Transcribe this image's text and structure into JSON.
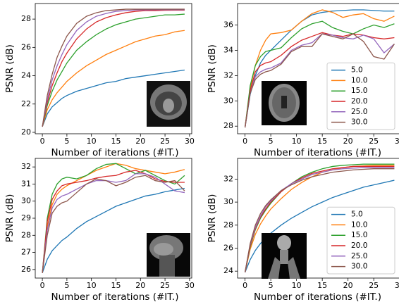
{
  "chart_data": [
    {
      "type": "line",
      "xlabel": "Number of iterations (#IT.)",
      "ylabel": "PSNR (dB)",
      "x": [
        0,
        1,
        2,
        3,
        4,
        5,
        7,
        9,
        11,
        13,
        15,
        17,
        19,
        21,
        23,
        25,
        27,
        29
      ],
      "xlim": [
        -1.45,
        30.45
      ],
      "xticks": [
        0,
        5,
        10,
        15,
        20,
        25,
        30
      ],
      "ylim": [
        19.9,
        29.1
      ],
      "yticks": [
        20,
        22,
        24,
        26,
        28
      ],
      "series": [
        {
          "color": "#1f77b4",
          "values": [
            20.4,
            21.3,
            21.8,
            22.1,
            22.4,
            22.6,
            22.9,
            23.1,
            23.3,
            23.5,
            23.6,
            23.8,
            23.9,
            24.0,
            24.1,
            24.2,
            24.3,
            24.4
          ]
        },
        {
          "color": "#ff7f0e",
          "values": [
            20.4,
            21.6,
            22.3,
            22.8,
            23.2,
            23.6,
            24.2,
            24.7,
            25.1,
            25.5,
            25.8,
            26.1,
            26.4,
            26.6,
            26.8,
            26.9,
            27.1,
            27.2
          ]
        },
        {
          "color": "#2ca02c",
          "values": [
            20.4,
            21.9,
            22.9,
            23.7,
            24.3,
            24.9,
            25.8,
            26.4,
            26.9,
            27.3,
            27.6,
            27.8,
            28.0,
            28.1,
            28.2,
            28.3,
            28.3,
            28.35
          ]
        },
        {
          "color": "#d62728",
          "values": [
            20.4,
            22.1,
            23.3,
            24.2,
            25.0,
            25.6,
            26.6,
            27.3,
            27.8,
            28.1,
            28.3,
            28.45,
            28.55,
            28.6,
            28.6,
            28.62,
            28.63,
            28.63
          ]
        },
        {
          "color": "#9467bd",
          "values": [
            20.4,
            22.3,
            23.7,
            24.7,
            25.5,
            26.2,
            27.2,
            27.8,
            28.2,
            28.4,
            28.55,
            28.6,
            28.65,
            28.65,
            28.66,
            28.66,
            28.66,
            28.66
          ]
        },
        {
          "color": "#8c564b",
          "values": [
            20.4,
            22.6,
            24.1,
            25.3,
            26.1,
            26.8,
            27.7,
            28.2,
            28.45,
            28.6,
            28.65,
            28.7,
            28.7,
            28.7,
            28.7,
            28.7,
            28.7,
            28.7
          ]
        }
      ]
    },
    {
      "type": "line",
      "xlabel": "Number of iterations (#IT.)",
      "ylabel": "PSNR (dB)",
      "legend": "lower right",
      "x": [
        0,
        1,
        2,
        3,
        4,
        5,
        7,
        9,
        11,
        13,
        15,
        17,
        19,
        21,
        23,
        25,
        27,
        29
      ],
      "xlim": [
        -1.45,
        30.45
      ],
      "xticks": [
        0,
        5,
        10,
        15,
        20,
        25,
        30
      ],
      "ylim": [
        27.4,
        37.7
      ],
      "yticks": [
        28,
        30,
        32,
        34,
        36
      ],
      "series": [
        {
          "name": "5.0",
          "color": "#1f77b4",
          "values": [
            27.9,
            30.5,
            32.0,
            33.0,
            33.6,
            34.0,
            34.8,
            35.6,
            36.3,
            36.8,
            37.0,
            37.1,
            37.15,
            37.2,
            37.2,
            37.15,
            37.1,
            37.1
          ]
        },
        {
          "name": "10.0",
          "color": "#ff7f0e",
          "values": [
            27.9,
            31.0,
            32.8,
            34.0,
            34.8,
            35.3,
            35.4,
            35.6,
            36.3,
            36.9,
            37.2,
            37.0,
            36.6,
            36.8,
            36.9,
            36.5,
            36.3,
            36.7
          ]
        },
        {
          "name": "15.0",
          "color": "#2ca02c",
          "values": [
            27.9,
            31.2,
            32.8,
            33.5,
            33.9,
            34.0,
            34.2,
            35.0,
            35.7,
            36.1,
            36.3,
            35.8,
            35.5,
            35.3,
            35.7,
            36.0,
            35.8,
            36.1
          ]
        },
        {
          "name": "20.0",
          "color": "#d62728",
          "values": [
            27.9,
            30.8,
            32.3,
            32.8,
            33.0,
            33.1,
            33.6,
            34.3,
            34.8,
            35.1,
            35.4,
            35.2,
            35.1,
            35.3,
            35.2,
            35.0,
            34.9,
            35.0
          ]
        },
        {
          "name": "25.0",
          "color": "#9467bd",
          "values": [
            27.9,
            30.6,
            31.9,
            32.3,
            32.5,
            32.6,
            33.0,
            34.0,
            34.4,
            34.6,
            35.3,
            35.2,
            35.0,
            34.9,
            35.2,
            34.9,
            33.8,
            34.5
          ]
        },
        {
          "name": "30.0",
          "color": "#8c564b",
          "values": [
            27.9,
            30.6,
            31.7,
            32.1,
            32.3,
            32.4,
            32.9,
            33.9,
            34.3,
            34.3,
            35.3,
            35.1,
            34.9,
            35.3,
            34.7,
            33.5,
            33.3,
            34.5
          ]
        }
      ]
    },
    {
      "type": "line",
      "xlabel": "Number of iterations (#IT.)",
      "ylabel": "PSNR (dB)",
      "x": [
        0,
        1,
        2,
        3,
        4,
        5,
        7,
        9,
        11,
        13,
        15,
        17,
        19,
        21,
        23,
        25,
        27,
        29
      ],
      "xlim": [
        -1.45,
        30.45
      ],
      "xticks": [
        0,
        5,
        10,
        15,
        20,
        25,
        30
      ],
      "ylim": [
        25.5,
        32.5
      ],
      "yticks": [
        26,
        27,
        28,
        29,
        30,
        31,
        32
      ],
      "series": [
        {
          "color": "#1f77b4",
          "values": [
            25.8,
            26.6,
            27.1,
            27.4,
            27.7,
            27.9,
            28.4,
            28.8,
            29.1,
            29.4,
            29.7,
            29.9,
            30.1,
            30.3,
            30.4,
            30.55,
            30.65,
            30.75
          ]
        },
        {
          "color": "#ff7f0e",
          "values": [
            25.8,
            28.5,
            29.8,
            30.4,
            30.7,
            30.9,
            31.2,
            31.5,
            31.8,
            32.0,
            32.2,
            32.1,
            31.9,
            31.8,
            31.7,
            31.6,
            31.7,
            31.85
          ]
        },
        {
          "color": "#2ca02c",
          "values": [
            25.8,
            29.0,
            30.4,
            31.0,
            31.3,
            31.4,
            31.3,
            31.5,
            31.9,
            32.15,
            32.2,
            31.9,
            31.6,
            31.8,
            31.5,
            31.2,
            31.0,
            31.5
          ]
        },
        {
          "color": "#d62728",
          "values": [
            25.8,
            28.8,
            30.1,
            30.6,
            30.9,
            31.0,
            31.1,
            31.2,
            31.35,
            31.45,
            31.5,
            31.7,
            31.8,
            31.6,
            31.3,
            31.15,
            31.1,
            31.1
          ]
        },
        {
          "color": "#9467bd",
          "values": [
            25.8,
            28.3,
            29.6,
            30.1,
            30.3,
            30.4,
            30.7,
            31.0,
            31.2,
            31.2,
            31.1,
            31.2,
            31.6,
            31.6,
            31.4,
            31.0,
            30.6,
            30.5
          ]
        },
        {
          "color": "#8c564b",
          "values": [
            25.8,
            28.0,
            29.3,
            29.7,
            29.9,
            30.0,
            30.5,
            31.0,
            31.3,
            31.2,
            30.9,
            31.1,
            31.4,
            31.5,
            31.2,
            31.1,
            31.2,
            30.6
          ]
        }
      ]
    },
    {
      "type": "line",
      "xlabel": "Number of iterations (#IT.)",
      "ylabel": "PSNR (dB)",
      "legend": "lower right",
      "x": [
        0,
        1,
        2,
        3,
        4,
        5,
        7,
        9,
        11,
        13,
        15,
        17,
        19,
        21,
        23,
        25,
        27,
        29
      ],
      "xlim": [
        -1.45,
        30.45
      ],
      "xticks": [
        0,
        5,
        10,
        15,
        20,
        25,
        30
      ],
      "ylim": [
        23.4,
        33.8
      ],
      "yticks": [
        24,
        26,
        28,
        30,
        32
      ],
      "series": [
        {
          "name": "5.0",
          "color": "#1f77b4",
          "values": [
            23.9,
            25.0,
            25.8,
            26.4,
            26.9,
            27.3,
            28.0,
            28.6,
            29.1,
            29.6,
            30.0,
            30.4,
            30.7,
            31.0,
            31.3,
            31.5,
            31.7,
            31.9
          ]
        },
        {
          "name": "10.0",
          "color": "#ff7f0e",
          "values": [
            23.9,
            25.9,
            27.2,
            28.1,
            28.8,
            29.4,
            30.3,
            31.1,
            31.7,
            32.2,
            32.6,
            32.8,
            33.0,
            33.1,
            33.15,
            33.2,
            33.2,
            33.2
          ]
        },
        {
          "name": "15.0",
          "color": "#2ca02c",
          "values": [
            23.9,
            26.1,
            27.6,
            28.6,
            29.3,
            29.9,
            30.9,
            31.6,
            32.2,
            32.6,
            32.9,
            33.1,
            33.2,
            33.25,
            33.3,
            33.3,
            33.3,
            33.3
          ]
        },
        {
          "name": "20.0",
          "color": "#d62728",
          "values": [
            23.9,
            26.2,
            27.7,
            28.7,
            29.4,
            30.0,
            30.9,
            31.6,
            32.1,
            32.5,
            32.7,
            32.9,
            33.0,
            33.1,
            33.1,
            33.1,
            33.1,
            33.1
          ]
        },
        {
          "name": "25.0",
          "color": "#9467bd",
          "values": [
            23.9,
            26.3,
            27.8,
            28.8,
            29.6,
            30.1,
            31.0,
            31.6,
            32.0,
            32.4,
            32.6,
            32.8,
            32.9,
            32.95,
            33.0,
            33.0,
            33.0,
            33.0
          ]
        },
        {
          "name": "30.0",
          "color": "#8c564b",
          "values": [
            23.9,
            26.4,
            28.0,
            29.0,
            29.7,
            30.2,
            31.0,
            31.5,
            31.9,
            32.2,
            32.4,
            32.6,
            32.7,
            32.8,
            32.85,
            32.9,
            32.9,
            32.9
          ]
        }
      ]
    }
  ]
}
